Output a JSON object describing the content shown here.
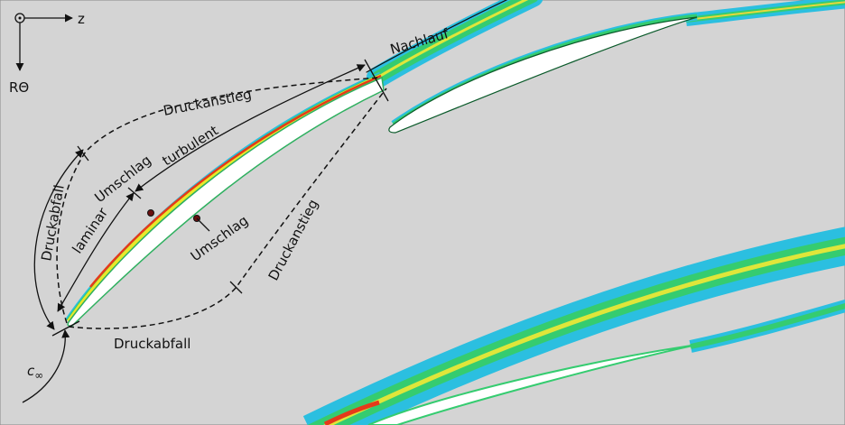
{
  "axes": {
    "horizontal": "z",
    "vertical": "RΘ"
  },
  "labels": {
    "wake": "Nachlauf",
    "suction_pressure_rise": "Druckanstieg",
    "turbulent": "turbulent",
    "suction_transition": "Umschlag",
    "laminar": "laminar",
    "suction_pressure_drop": "Druckabfall",
    "pressure_transition": "Umschlag",
    "pressure_pressure_rise": "Druckanstieg",
    "pressure_pressure_drop": "Druckabfall",
    "inflow": {
      "symbol": "c",
      "subscript": "∞"
    }
  }
}
